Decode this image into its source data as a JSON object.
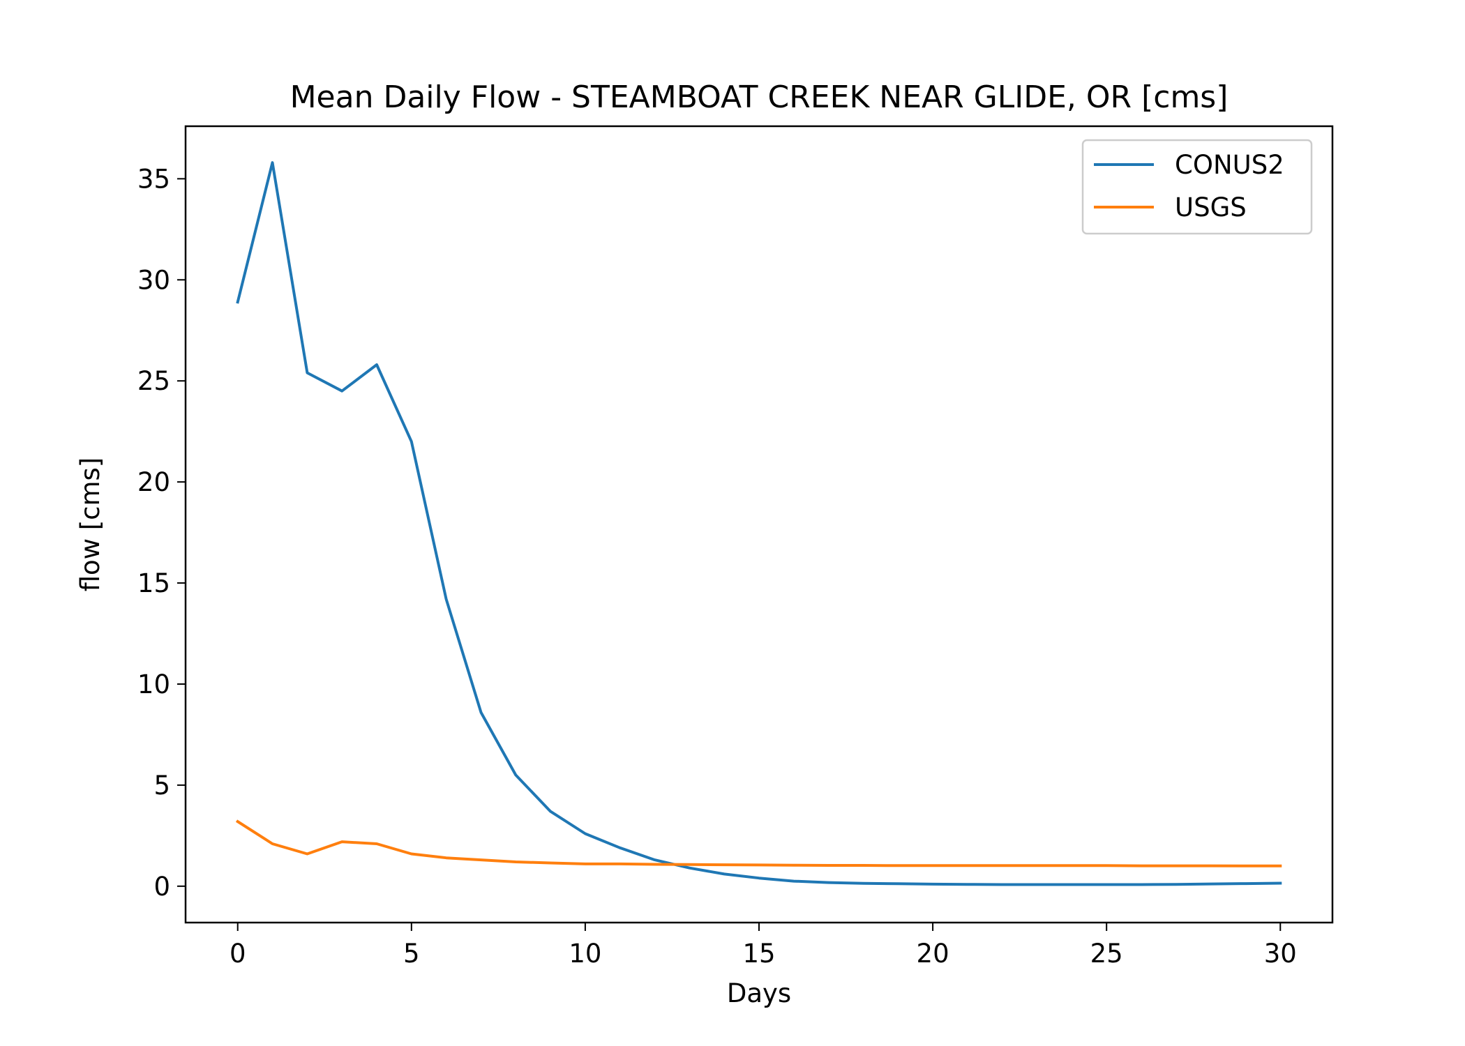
{
  "chart_data": {
    "type": "line",
    "title": "Mean Daily Flow - STEAMBOAT CREEK NEAR GLIDE, OR [cms]",
    "xlabel": "Days",
    "ylabel": "flow [cms]",
    "xlim": [
      -1.5,
      31.5
    ],
    "ylim": [
      -1.8,
      37.6
    ],
    "xticks": [
      0,
      5,
      10,
      15,
      20,
      25,
      30
    ],
    "yticks": [
      0,
      5,
      10,
      15,
      20,
      25,
      30,
      35
    ],
    "grid": false,
    "legend_position": "top-right",
    "x": [
      0,
      1,
      2,
      3,
      4,
      5,
      6,
      7,
      8,
      9,
      10,
      11,
      12,
      13,
      14,
      15,
      16,
      17,
      18,
      19,
      20,
      21,
      22,
      23,
      24,
      25,
      26,
      27,
      28,
      29,
      30
    ],
    "series": [
      {
        "name": "CONUS2",
        "color": "#1f77b4",
        "values": [
          28.9,
          35.8,
          25.4,
          24.5,
          25.8,
          22.0,
          14.2,
          8.6,
          5.5,
          3.7,
          2.6,
          1.9,
          1.3,
          0.9,
          0.6,
          0.4,
          0.25,
          0.18,
          0.14,
          0.12,
          0.1,
          0.09,
          0.08,
          0.08,
          0.08,
          0.08,
          0.08,
          0.09,
          0.11,
          0.13,
          0.15
        ]
      },
      {
        "name": "USGS",
        "color": "#ff7f0e",
        "values": [
          3.2,
          2.1,
          1.6,
          2.2,
          2.1,
          1.6,
          1.4,
          1.3,
          1.2,
          1.15,
          1.1,
          1.1,
          1.08,
          1.07,
          1.06,
          1.05,
          1.04,
          1.03,
          1.03,
          1.02,
          1.02,
          1.02,
          1.02,
          1.02,
          1.02,
          1.02,
          1.01,
          1.01,
          1.01,
          1.0,
          1.0
        ]
      }
    ]
  }
}
